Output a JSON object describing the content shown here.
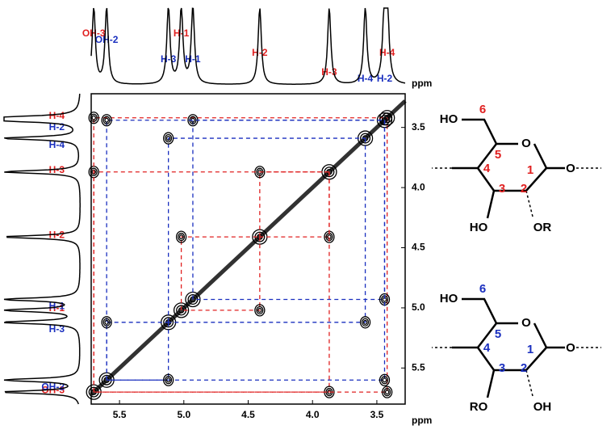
{
  "chart_data": {
    "type": "cosy",
    "xlabel": "ppm",
    "ylabel": "ppm",
    "xlim": [
      5.72,
      3.28
    ],
    "ylim": [
      3.22,
      5.8
    ],
    "xticks": [
      5.5,
      {
        "value": 5,
        "label": "5.0"
      },
      4.5,
      {
        "value": 4,
        "label": "4.0"
      },
      3.5
    ],
    "yticks": [
      3.5,
      {
        "value": 4,
        "label": "4.0"
      },
      4.5,
      {
        "value": 5,
        "label": "5.0"
      },
      5.5
    ],
    "residues": [
      {
        "color": "#e02020",
        "assignments": [
          {
            "label": "H-1",
            "shift": 5.02
          },
          {
            "label": "H-2",
            "shift": 4.41
          },
          {
            "label": "H-3",
            "shift": 3.87
          },
          {
            "label": "OH-3",
            "shift": 5.7
          },
          {
            "label": "H-4",
            "shift": 3.42
          }
        ]
      },
      {
        "color": "#1a2fbf",
        "assignments": [
          {
            "label": "H-1",
            "shift": 4.93
          },
          {
            "label": "H-2",
            "shift": 3.44
          },
          {
            "label": "OH-2",
            "shift": 5.6
          },
          {
            "label": "H-3",
            "shift": 5.12
          },
          {
            "label": "H-4",
            "shift": 3.59
          }
        ]
      }
    ]
  },
  "structures": [
    {
      "texts": [
        "HO",
        "6",
        "5",
        "O",
        "4",
        "1",
        "O",
        "3",
        "2",
        "HO",
        "OR"
      ]
    },
    {
      "texts": [
        "HO",
        "6",
        "5",
        "O",
        "4",
        "1",
        "O",
        "3",
        "2",
        "RO",
        "OH"
      ]
    }
  ]
}
